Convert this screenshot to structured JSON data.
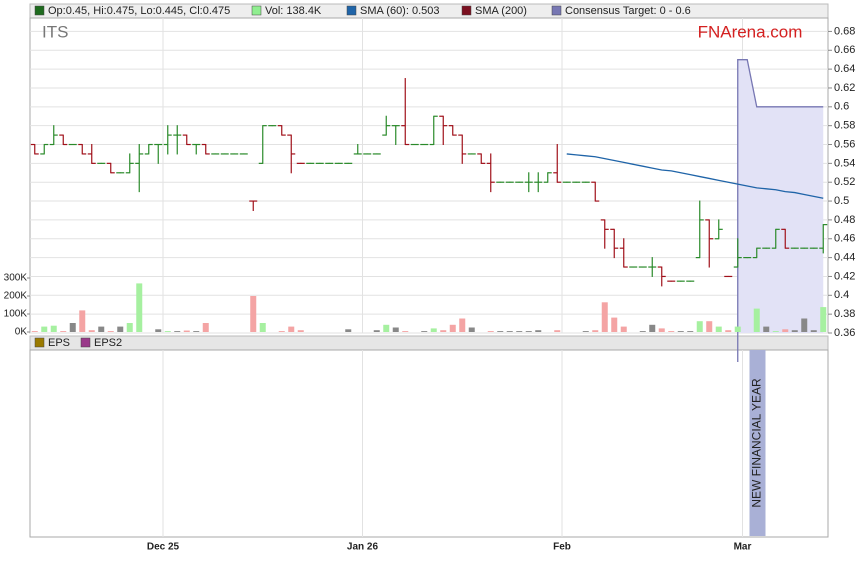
{
  "chart_data": {
    "type": "ohlc",
    "title": "ITS",
    "source": "FNArena.com",
    "ohlc_legend": "Op:0.45, Hi:0.475, Lo:0.445, Cl:0.475",
    "up_color": "#2a8a2a",
    "down_color": "#a0101a",
    "legend_color": "#1e6b1e",
    "xlim": [
      0,
      84
    ],
    "xticks": [
      {
        "value": 14,
        "label": "Dec 25"
      },
      {
        "value": 35,
        "label": "Jan 26"
      },
      {
        "value": 56,
        "label": "Feb"
      },
      {
        "value": 75,
        "label": "Mar"
      }
    ],
    "ylim": [
      0.36,
      0.69
    ],
    "yticks": [
      0.36,
      0.38,
      0.4,
      0.42,
      0.44,
      0.46,
      0.48,
      0.5,
      0.52,
      0.54,
      0.56,
      0.58,
      0.6,
      0.62,
      0.64,
      0.66,
      0.68
    ],
    "grid": true,
    "open": [
      0.56,
      0.55,
      0.56,
      0.57,
      0.56,
      0.56,
      0.55,
      0.54,
      0.54,
      0.53,
      0.53,
      0.54,
      0.55,
      0.56,
      0.56,
      0.57,
      0.57,
      0.56,
      0.56,
      0.55,
      0.55,
      0.55,
      0.55,
      0.5,
      0.54,
      0.58,
      0.58,
      0.57,
      0.54,
      0.54,
      0.54,
      0.54,
      0.54,
      0.54,
      0.55,
      0.55,
      0.55,
      0.57,
      0.58,
      0.58,
      0.56,
      0.56,
      0.56,
      0.59,
      0.58,
      0.57,
      0.55,
      0.55,
      0.54,
      0.52,
      0.52,
      0.52,
      0.52,
      0.52,
      0.52,
      0.53,
      0.52,
      0.52,
      0.52,
      0.52,
      0.48,
      0.47,
      0.45,
      0.43,
      0.43,
      0.43,
      0.43,
      0.415,
      0.415,
      0.415,
      0.44,
      0.48,
      0.46,
      0.42,
      0.43,
      0.44,
      0.44,
      0.45,
      0.45,
      0.47,
      0.45,
      0.45,
      0.45,
      0.45
    ],
    "high": [
      0.56,
      0.56,
      0.58,
      0.57,
      0.56,
      0.56,
      0.56,
      0.54,
      0.54,
      0.53,
      0.55,
      0.56,
      0.56,
      0.56,
      0.58,
      0.58,
      0.57,
      0.56,
      0.56,
      0.55,
      0.55,
      0.55,
      0.55,
      0.5,
      0.58,
      0.58,
      0.58,
      0.57,
      0.54,
      0.54,
      0.54,
      0.54,
      0.54,
      0.54,
      0.56,
      0.55,
      0.55,
      0.59,
      0.58,
      0.63,
      0.56,
      0.56,
      0.59,
      0.59,
      0.58,
      0.57,
      0.55,
      0.55,
      0.55,
      0.52,
      0.52,
      0.52,
      0.53,
      0.53,
      0.53,
      0.56,
      0.52,
      0.52,
      0.52,
      0.52,
      0.48,
      0.47,
      0.46,
      0.43,
      0.43,
      0.44,
      0.43,
      0.415,
      0.415,
      0.415,
      0.5,
      0.48,
      0.48,
      0.42,
      0.46,
      0.44,
      0.45,
      0.45,
      0.47,
      0.47,
      0.45,
      0.45,
      0.45,
      0.475
    ],
    "low": [
      0.55,
      0.55,
      0.56,
      0.56,
      0.56,
      0.55,
      0.54,
      0.54,
      0.53,
      0.53,
      0.53,
      0.51,
      0.55,
      0.54,
      0.55,
      0.55,
      0.56,
      0.55,
      0.55,
      0.55,
      0.55,
      0.55,
      0.55,
      0.49,
      0.54,
      0.58,
      0.57,
      0.53,
      0.54,
      0.54,
      0.54,
      0.54,
      0.54,
      0.54,
      0.55,
      0.55,
      0.55,
      0.57,
      0.56,
      0.56,
      0.56,
      0.56,
      0.56,
      0.56,
      0.57,
      0.54,
      0.55,
      0.54,
      0.51,
      0.52,
      0.52,
      0.52,
      0.51,
      0.51,
      0.52,
      0.52,
      0.52,
      0.52,
      0.52,
      0.5,
      0.45,
      0.44,
      0.43,
      0.43,
      0.43,
      0.42,
      0.41,
      0.415,
      0.415,
      0.415,
      0.44,
      0.43,
      0.46,
      0.42,
      0.43,
      0.44,
      0.44,
      0.45,
      0.45,
      0.45,
      0.45,
      0.45,
      0.45,
      0.445
    ],
    "close": [
      0.55,
      0.56,
      0.57,
      0.56,
      0.56,
      0.55,
      0.54,
      0.54,
      0.53,
      0.53,
      0.54,
      0.55,
      0.56,
      0.56,
      0.57,
      0.57,
      0.56,
      0.56,
      0.55,
      0.55,
      0.55,
      0.55,
      0.55,
      0.5,
      0.58,
      0.58,
      0.57,
      0.55,
      0.54,
      0.54,
      0.54,
      0.54,
      0.54,
      0.54,
      0.55,
      0.55,
      0.55,
      0.58,
      0.58,
      0.56,
      0.56,
      0.56,
      0.59,
      0.58,
      0.57,
      0.55,
      0.55,
      0.54,
      0.52,
      0.52,
      0.52,
      0.52,
      0.52,
      0.52,
      0.53,
      0.52,
      0.52,
      0.52,
      0.52,
      0.5,
      0.47,
      0.45,
      0.43,
      0.43,
      0.43,
      0.43,
      0.42,
      0.415,
      0.415,
      0.415,
      0.48,
      0.46,
      0.47,
      0.42,
      0.44,
      0.44,
      0.45,
      0.45,
      0.47,
      0.45,
      0.45,
      0.45,
      0.45,
      0.475
    ],
    "volume": {
      "name": "Vol: 138.4K",
      "color": "#90ee90",
      "up_color": "#a6f0a0",
      "down_color": "#f4a4a4",
      "flat_color": "#888888",
      "ylim": [
        0,
        300000
      ],
      "yticks": [
        {
          "value": 0,
          "label": "0K"
        },
        {
          "value": 100000,
          "label": "100K"
        },
        {
          "value": 200000,
          "label": "200K"
        },
        {
          "value": 300000,
          "label": "300K"
        }
      ],
      "values": [
        5000,
        30000,
        35000,
        5000,
        50000,
        120000,
        10000,
        30000,
        5000,
        30000,
        50000,
        270000,
        0,
        15000,
        5000,
        5000,
        8000,
        5000,
        50000,
        0,
        0,
        0,
        0,
        200000,
        50000,
        0,
        5000,
        30000,
        10000,
        0,
        0,
        0,
        0,
        15000,
        0,
        0,
        10000,
        40000,
        25000,
        5000,
        0,
        5000,
        20000,
        10000,
        40000,
        75000,
        25000,
        0,
        5000,
        5000,
        5000,
        5000,
        5000,
        10000,
        0,
        10000,
        0,
        0,
        5000,
        10000,
        165000,
        80000,
        30000,
        0,
        5000,
        40000,
        20000,
        5000,
        5000,
        5000,
        60000,
        60000,
        30000,
        10000,
        30000,
        0,
        130000,
        30000,
        5000,
        15000,
        10000,
        75000,
        10000,
        138400
      ]
    },
    "series": [
      {
        "name": "SMA (60): 0.503",
        "color": "#1f64a8",
        "values": [
          null,
          null,
          null,
          null,
          null,
          null,
          null,
          null,
          null,
          null,
          null,
          null,
          null,
          null,
          null,
          null,
          null,
          null,
          null,
          null,
          null,
          null,
          null,
          null,
          null,
          null,
          null,
          null,
          null,
          null,
          null,
          null,
          null,
          null,
          null,
          null,
          null,
          null,
          null,
          null,
          null,
          null,
          null,
          null,
          null,
          null,
          null,
          null,
          null,
          null,
          null,
          null,
          null,
          null,
          null,
          null,
          0.55,
          0.549,
          0.548,
          0.547,
          0.545,
          0.543,
          0.541,
          0.539,
          0.537,
          0.535,
          0.533,
          0.532,
          0.53,
          0.528,
          0.526,
          0.524,
          0.522,
          0.52,
          0.518,
          0.516,
          0.514,
          0.513,
          0.512,
          0.51,
          0.509,
          0.507,
          0.505,
          0.503
        ]
      },
      {
        "name": "SMA (200)",
        "color": "#7b1020"
      }
    ],
    "consensus": {
      "name": "Consensus Target: 0 - 0.6",
      "color": "#7777b3",
      "fill": "#e2e2f6",
      "values": [
        null,
        null,
        null,
        null,
        null,
        null,
        null,
        null,
        null,
        null,
        null,
        null,
        null,
        null,
        null,
        null,
        null,
        null,
        null,
        null,
        null,
        null,
        null,
        null,
        null,
        null,
        null,
        null,
        null,
        null,
        null,
        null,
        null,
        null,
        null,
        null,
        null,
        null,
        null,
        null,
        null,
        null,
        null,
        null,
        null,
        null,
        null,
        null,
        null,
        null,
        null,
        null,
        null,
        null,
        null,
        null,
        null,
        null,
        null,
        null,
        null,
        null,
        null,
        null,
        null,
        null,
        null,
        null,
        null,
        null,
        null,
        null,
        null,
        null,
        0.65,
        0.65,
        0.6,
        0.6,
        0.6,
        0.6,
        0.6,
        0.6,
        0.6,
        0.6
      ]
    },
    "eps_series": [
      {
        "name": "EPS",
        "color": "#9a7a00"
      },
      {
        "name": "EPS2",
        "color": "#9a3a8a"
      }
    ],
    "annotation": "NEW FINANCIAL YEAR"
  }
}
